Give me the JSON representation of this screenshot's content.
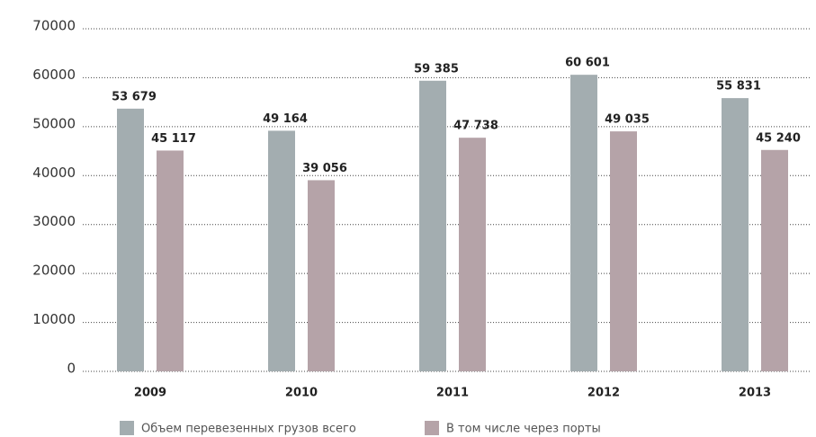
{
  "chart_data": {
    "type": "bar",
    "categories": [
      "2009",
      "2010",
      "2011",
      "2012",
      "2013"
    ],
    "series": [
      {
        "name": "Объем перевезенных грузов всего",
        "color": "#a3adb0",
        "values": [
          53679,
          49164,
          59385,
          60601,
          55831
        ],
        "value_labels": [
          "53 679",
          "49 164",
          "59 385",
          "60 601",
          "55 831"
        ]
      },
      {
        "name": "В том числе через порты",
        "color": "#b5a3a8",
        "values": [
          45117,
          39056,
          47738,
          49035,
          45240
        ],
        "value_labels": [
          "45 117",
          "39 056",
          "47 738",
          "49 035",
          "45 240"
        ]
      }
    ],
    "ylim": [
      0,
      70000
    ],
    "yticks": [
      0,
      10000,
      20000,
      30000,
      40000,
      50000,
      60000,
      70000
    ],
    "grid": true,
    "legend": "bottom"
  }
}
